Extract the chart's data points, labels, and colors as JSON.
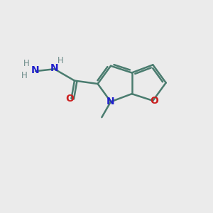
{
  "bg_color": "#ebebeb",
  "bond_color": "#4a7c6f",
  "n_color": "#2020cc",
  "o_color": "#cc2020",
  "h_color": "#6a8a88",
  "line_width": 1.8,
  "figsize": [
    3.0,
    3.0
  ],
  "dpi": 100,
  "xlim": [
    0,
    10
  ],
  "ylim": [
    0,
    10
  ]
}
